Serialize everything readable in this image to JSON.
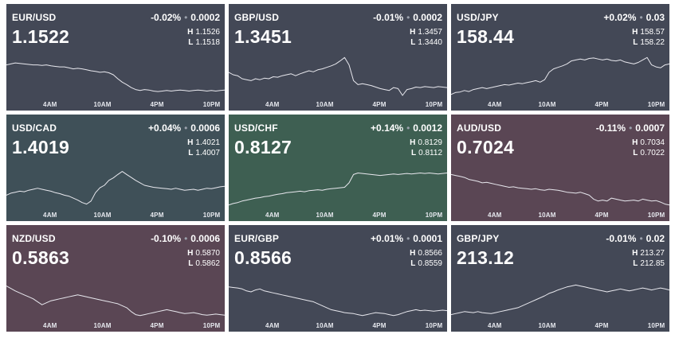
{
  "colors": {
    "neutral": "#434856",
    "up_strong": "#3e5f52",
    "up_light": "#3f5058",
    "down": "#5a4654",
    "line": "#e8e8ee"
  },
  "time_ticks": [
    "4AM",
    "10AM",
    "4PM",
    "10PM"
  ],
  "tiles": [
    {
      "pair": "EUR/USD",
      "pct": "-0.02%",
      "chg": "0.0002",
      "price": "1.1522",
      "high": "1.1526",
      "low": "1.1518",
      "theme": "neutral",
      "series": [
        0.7,
        0.72,
        0.74,
        0.73,
        0.72,
        0.71,
        0.7,
        0.7,
        0.69,
        0.7,
        0.68,
        0.67,
        0.66,
        0.66,
        0.64,
        0.62,
        0.63,
        0.62,
        0.6,
        0.58,
        0.57,
        0.55,
        0.56,
        0.54,
        0.5,
        0.42,
        0.35,
        0.3,
        0.24,
        0.2,
        0.18,
        0.2,
        0.19,
        0.17,
        0.16,
        0.17,
        0.18,
        0.17,
        0.18,
        0.19,
        0.18,
        0.17,
        0.18,
        0.19,
        0.18,
        0.17,
        0.18,
        0.17,
        0.18,
        0.19
      ]
    },
    {
      "pair": "GBP/USD",
      "pct": "-0.01%",
      "chg": "0.0002",
      "price": "1.3451",
      "high": "1.3457",
      "low": "1.3440",
      "theme": "neutral",
      "series": [
        0.55,
        0.5,
        0.48,
        0.42,
        0.4,
        0.38,
        0.42,
        0.4,
        0.43,
        0.42,
        0.46,
        0.45,
        0.48,
        0.5,
        0.52,
        0.48,
        0.52,
        0.55,
        0.58,
        0.56,
        0.6,
        0.62,
        0.65,
        0.68,
        0.72,
        0.78,
        0.85,
        0.7,
        0.38,
        0.3,
        0.32,
        0.3,
        0.28,
        0.25,
        0.22,
        0.2,
        0.18,
        0.24,
        0.22,
        0.08,
        0.2,
        0.22,
        0.25,
        0.24,
        0.26,
        0.25,
        0.24,
        0.26,
        0.25,
        0.24
      ]
    },
    {
      "pair": "USD/JPY",
      "pct": "+0.02%",
      "chg": "0.03",
      "price": "158.44",
      "high": "158.57",
      "low": "158.22",
      "theme": "neutral",
      "series": [
        0.1,
        0.14,
        0.15,
        0.18,
        0.16,
        0.2,
        0.22,
        0.24,
        0.22,
        0.24,
        0.26,
        0.28,
        0.3,
        0.29,
        0.31,
        0.33,
        0.32,
        0.34,
        0.36,
        0.38,
        0.35,
        0.4,
        0.55,
        0.62,
        0.65,
        0.68,
        0.72,
        0.78,
        0.8,
        0.82,
        0.8,
        0.83,
        0.84,
        0.82,
        0.8,
        0.82,
        0.79,
        0.78,
        0.8,
        0.76,
        0.74,
        0.72,
        0.75,
        0.8,
        0.85,
        0.7,
        0.66,
        0.64,
        0.7,
        0.72
      ]
    },
    {
      "pair": "USD/CAD",
      "pct": "+0.04%",
      "chg": "0.0006",
      "price": "1.4019",
      "high": "1.4021",
      "low": "1.4007",
      "theme": "up_light",
      "series": [
        0.3,
        0.34,
        0.36,
        0.38,
        0.37,
        0.4,
        0.42,
        0.44,
        0.42,
        0.4,
        0.38,
        0.35,
        0.33,
        0.3,
        0.28,
        0.24,
        0.2,
        0.15,
        0.12,
        0.18,
        0.35,
        0.45,
        0.5,
        0.6,
        0.65,
        0.72,
        0.78,
        0.72,
        0.66,
        0.6,
        0.55,
        0.5,
        0.48,
        0.46,
        0.45,
        0.44,
        0.43,
        0.42,
        0.44,
        0.42,
        0.4,
        0.41,
        0.42,
        0.4,
        0.42,
        0.44,
        0.43,
        0.45,
        0.47,
        0.48
      ]
    },
    {
      "pair": "USD/CHF",
      "pct": "+0.14%",
      "chg": "0.0012",
      "price": "0.8127",
      "high": "0.8129",
      "low": "0.8112",
      "theme": "up_strong",
      "series": [
        0.1,
        0.13,
        0.15,
        0.18,
        0.2,
        0.22,
        0.24,
        0.25,
        0.27,
        0.28,
        0.3,
        0.32,
        0.33,
        0.35,
        0.36,
        0.37,
        0.38,
        0.37,
        0.39,
        0.4,
        0.41,
        0.4,
        0.42,
        0.43,
        0.44,
        0.45,
        0.46,
        0.55,
        0.72,
        0.75,
        0.74,
        0.73,
        0.72,
        0.71,
        0.7,
        0.71,
        0.72,
        0.73,
        0.72,
        0.73,
        0.74,
        0.73,
        0.74,
        0.75,
        0.74,
        0.75,
        0.74,
        0.73,
        0.74,
        0.75
      ]
    },
    {
      "pair": "AUD/USD",
      "pct": "-0.11%",
      "chg": "0.0007",
      "price": "0.7024",
      "high": "0.7034",
      "low": "0.7022",
      "theme": "down",
      "series": [
        0.72,
        0.7,
        0.68,
        0.66,
        0.62,
        0.6,
        0.58,
        0.55,
        0.56,
        0.54,
        0.52,
        0.5,
        0.48,
        0.46,
        0.47,
        0.45,
        0.44,
        0.43,
        0.42,
        0.43,
        0.41,
        0.4,
        0.42,
        0.41,
        0.4,
        0.38,
        0.36,
        0.35,
        0.34,
        0.36,
        0.33,
        0.3,
        0.22,
        0.18,
        0.2,
        0.18,
        0.24,
        0.22,
        0.2,
        0.18,
        0.19,
        0.2,
        0.18,
        0.22,
        0.2,
        0.18,
        0.19,
        0.16,
        0.12,
        0.1
      ]
    },
    {
      "pair": "NZD/USD",
      "pct": "-0.10%",
      "chg": "0.0006",
      "price": "0.5863",
      "high": "0.5870",
      "low": "0.5862",
      "theme": "down",
      "series": [
        0.7,
        0.65,
        0.6,
        0.56,
        0.52,
        0.48,
        0.44,
        0.38,
        0.32,
        0.36,
        0.4,
        0.42,
        0.44,
        0.46,
        0.48,
        0.5,
        0.52,
        0.5,
        0.48,
        0.46,
        0.44,
        0.42,
        0.4,
        0.38,
        0.36,
        0.34,
        0.3,
        0.26,
        0.18,
        0.12,
        0.1,
        0.12,
        0.14,
        0.16,
        0.18,
        0.2,
        0.22,
        0.2,
        0.18,
        0.16,
        0.14,
        0.15,
        0.16,
        0.14,
        0.12,
        0.11,
        0.12,
        0.13,
        0.12,
        0.11
      ]
    },
    {
      "pair": "EUR/GBP",
      "pct": "+0.01%",
      "chg": "0.0001",
      "price": "0.8566",
      "high": "0.8566",
      "low": "0.8559",
      "theme": "neutral",
      "series": [
        0.68,
        0.67,
        0.66,
        0.64,
        0.6,
        0.58,
        0.62,
        0.64,
        0.6,
        0.58,
        0.56,
        0.54,
        0.52,
        0.5,
        0.48,
        0.46,
        0.44,
        0.42,
        0.4,
        0.38,
        0.34,
        0.3,
        0.26,
        0.22,
        0.2,
        0.18,
        0.16,
        0.15,
        0.14,
        0.12,
        0.1,
        0.12,
        0.14,
        0.16,
        0.15,
        0.14,
        0.12,
        0.1,
        0.12,
        0.15,
        0.18,
        0.2,
        0.22,
        0.2,
        0.21,
        0.2,
        0.19,
        0.2,
        0.21,
        0.2
      ]
    },
    {
      "pair": "GBP/JPY",
      "pct": "-0.01%",
      "chg": "0.02",
      "price": "213.12",
      "high": "213.27",
      "low": "212.85",
      "theme": "neutral",
      "series": [
        0.12,
        0.14,
        0.16,
        0.18,
        0.17,
        0.16,
        0.18,
        0.16,
        0.15,
        0.14,
        0.16,
        0.18,
        0.2,
        0.22,
        0.24,
        0.26,
        0.3,
        0.34,
        0.38,
        0.42,
        0.46,
        0.5,
        0.55,
        0.58,
        0.62,
        0.65,
        0.68,
        0.7,
        0.72,
        0.7,
        0.68,
        0.66,
        0.64,
        0.62,
        0.6,
        0.58,
        0.6,
        0.62,
        0.64,
        0.62,
        0.6,
        0.62,
        0.64,
        0.66,
        0.64,
        0.62,
        0.64,
        0.66,
        0.64,
        0.62
      ]
    }
  ]
}
